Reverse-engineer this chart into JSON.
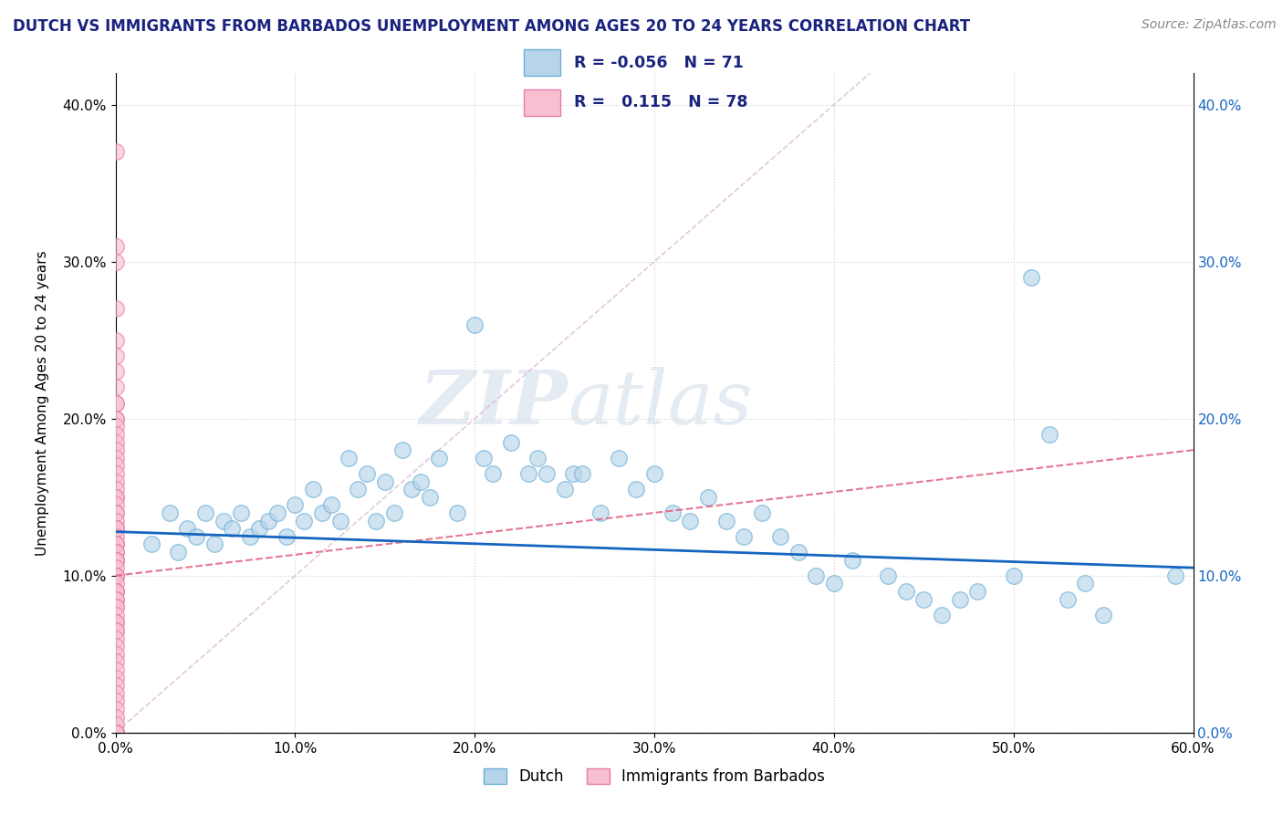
{
  "title": "DUTCH VS IMMIGRANTS FROM BARBADOS UNEMPLOYMENT AMONG AGES 20 TO 24 YEARS CORRELATION CHART",
  "source": "Source: ZipAtlas.com",
  "ylabel": "Unemployment Among Ages 20 to 24 years",
  "legend_label_1": "Dutch",
  "legend_label_2": "Immigrants from Barbados",
  "R1": -0.056,
  "N1": 71,
  "R2": 0.115,
  "N2": 78,
  "xlim": [
    0.0,
    0.6
  ],
  "ylim": [
    0.0,
    0.42
  ],
  "xticks": [
    0.0,
    0.1,
    0.2,
    0.3,
    0.4,
    0.5,
    0.6
  ],
  "yticks": [
    0.0,
    0.1,
    0.2,
    0.3,
    0.4
  ],
  "color_dutch_fill": "#b8d4ea",
  "color_dutch_edge": "#6aaed6",
  "color_barbados_fill": "#f7c0d0",
  "color_barbados_edge": "#e87aaa",
  "color_dutch_line": "#1565c0",
  "color_barbados_line": "#e0607e",
  "color_diagonal": "#ddbbcc",
  "dutch_x": [
    0.02,
    0.03,
    0.035,
    0.04,
    0.045,
    0.05,
    0.055,
    0.06,
    0.065,
    0.07,
    0.075,
    0.08,
    0.085,
    0.09,
    0.095,
    0.1,
    0.105,
    0.11,
    0.115,
    0.12,
    0.125,
    0.13,
    0.135,
    0.14,
    0.145,
    0.15,
    0.155,
    0.16,
    0.165,
    0.17,
    0.175,
    0.18,
    0.19,
    0.2,
    0.205,
    0.21,
    0.22,
    0.23,
    0.235,
    0.24,
    0.25,
    0.255,
    0.26,
    0.27,
    0.28,
    0.29,
    0.3,
    0.31,
    0.32,
    0.33,
    0.34,
    0.35,
    0.36,
    0.37,
    0.38,
    0.39,
    0.4,
    0.41,
    0.43,
    0.44,
    0.45,
    0.46,
    0.47,
    0.48,
    0.5,
    0.51,
    0.52,
    0.53,
    0.54,
    0.55,
    0.59
  ],
  "dutch_y": [
    0.12,
    0.14,
    0.115,
    0.13,
    0.125,
    0.14,
    0.12,
    0.135,
    0.13,
    0.14,
    0.125,
    0.13,
    0.135,
    0.14,
    0.125,
    0.145,
    0.135,
    0.155,
    0.14,
    0.145,
    0.135,
    0.175,
    0.155,
    0.165,
    0.135,
    0.16,
    0.14,
    0.18,
    0.155,
    0.16,
    0.15,
    0.175,
    0.14,
    0.26,
    0.175,
    0.165,
    0.185,
    0.165,
    0.175,
    0.165,
    0.155,
    0.165,
    0.165,
    0.14,
    0.175,
    0.155,
    0.165,
    0.14,
    0.135,
    0.15,
    0.135,
    0.125,
    0.14,
    0.125,
    0.115,
    0.1,
    0.095,
    0.11,
    0.1,
    0.09,
    0.085,
    0.075,
    0.085,
    0.09,
    0.1,
    0.29,
    0.19,
    0.085,
    0.095,
    0.075,
    0.1
  ],
  "barbados_x": [
    0.0,
    0.0,
    0.0,
    0.0,
    0.0,
    0.0,
    0.0,
    0.0,
    0.0,
    0.0,
    0.0,
    0.0,
    0.0,
    0.0,
    0.0,
    0.0,
    0.0,
    0.0,
    0.0,
    0.0,
    0.0,
    0.0,
    0.0,
    0.0,
    0.0,
    0.0,
    0.0,
    0.0,
    0.0,
    0.0,
    0.0,
    0.0,
    0.0,
    0.0,
    0.0,
    0.0,
    0.0,
    0.0,
    0.0,
    0.0,
    0.0,
    0.0,
    0.0,
    0.0,
    0.0,
    0.0,
    0.0,
    0.0,
    0.0,
    0.0,
    0.0,
    0.0,
    0.0,
    0.0,
    0.0,
    0.0,
    0.0,
    0.0,
    0.0,
    0.0,
    0.0,
    0.0,
    0.0,
    0.0,
    0.0,
    0.0,
    0.0,
    0.0,
    0.0,
    0.0,
    0.0,
    0.0,
    0.0,
    0.0,
    0.0,
    0.0,
    0.0,
    0.0
  ],
  "barbados_y": [
    0.37,
    0.31,
    0.3,
    0.27,
    0.25,
    0.24,
    0.23,
    0.22,
    0.21,
    0.21,
    0.2,
    0.2,
    0.195,
    0.19,
    0.185,
    0.18,
    0.175,
    0.17,
    0.165,
    0.16,
    0.155,
    0.15,
    0.15,
    0.145,
    0.14,
    0.14,
    0.135,
    0.13,
    0.13,
    0.13,
    0.125,
    0.12,
    0.12,
    0.12,
    0.115,
    0.115,
    0.11,
    0.11,
    0.11,
    0.11,
    0.105,
    0.1,
    0.1,
    0.1,
    0.095,
    0.09,
    0.09,
    0.09,
    0.085,
    0.085,
    0.08,
    0.08,
    0.075,
    0.07,
    0.07,
    0.065,
    0.065,
    0.06,
    0.055,
    0.05,
    0.045,
    0.04,
    0.035,
    0.03,
    0.025,
    0.02,
    0.015,
    0.01,
    0.005,
    0.0,
    0.0,
    0.0,
    0.0,
    0.0,
    0.0,
    0.0,
    0.0,
    0.0
  ],
  "dutch_trend_start_y": 0.128,
  "dutch_trend_end_y": 0.105,
  "barbados_trend_start_y": 0.1,
  "barbados_trend_end_y": 0.18
}
